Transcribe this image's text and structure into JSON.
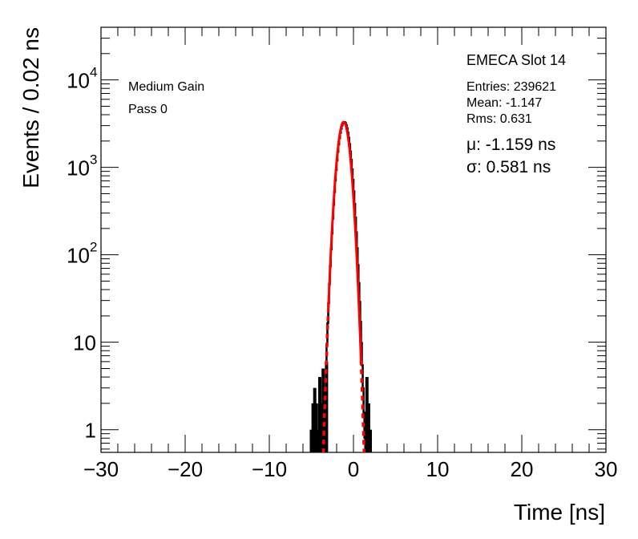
{
  "chart_data": {
    "type": "histogram",
    "xlabel": "Time [ns]",
    "ylabel": "Events / 0.02 ns",
    "xlim": [
      -30,
      30
    ],
    "ylim": [
      0.55,
      40000
    ],
    "yscale": "log",
    "grid": false,
    "x_ticks": [
      -30,
      -20,
      -10,
      0,
      10,
      20,
      30
    ],
    "x_tick_labels": [
      "−30",
      "−20",
      "−10",
      "0",
      "10",
      "20",
      "30"
    ],
    "y_ticks": [
      {
        "value": 1,
        "base": "1",
        "exp": ""
      },
      {
        "value": 10,
        "base": "10",
        "exp": ""
      },
      {
        "value": 100,
        "base": "10",
        "exp": "2"
      },
      {
        "value": 1000,
        "base": "10",
        "exp": "3"
      },
      {
        "value": 10000,
        "base": "10",
        "exp": "4"
      }
    ],
    "annotations": {
      "gain": "Medium Gain",
      "pass": "Pass 0",
      "slot": "EMECA Slot 14",
      "entries": "Entries: 239621",
      "mean": "Mean: -1.147",
      "rms": "Rms: 0.631",
      "mu": "μ: -1.159 ns",
      "sigma": "σ: 0.581 ns"
    },
    "histogram": {
      "mean": -1.147,
      "rms": 0.631,
      "peak": 3300,
      "color": "#000000",
      "tail_points": [
        {
          "x": -5.0,
          "y": 1
        },
        {
          "x": -4.8,
          "y": 2
        },
        {
          "x": -4.6,
          "y": 3
        },
        {
          "x": -4.4,
          "y": 2
        },
        {
          "x": -4.2,
          "y": 1
        },
        {
          "x": -4.0,
          "y": 4
        },
        {
          "x": -3.8,
          "y": 2
        },
        {
          "x": -3.6,
          "y": 5
        },
        {
          "x": -3.4,
          "y": 3
        },
        {
          "x": -3.2,
          "y": 6
        },
        {
          "x": 1.6,
          "y": 4
        },
        {
          "x": 1.8,
          "y": 2
        },
        {
          "x": 2.0,
          "y": 1
        }
      ]
    },
    "fit": {
      "type": "gaussian",
      "mu": -1.159,
      "sigma": 0.581,
      "amplitude": 3300,
      "color": "#ff0000",
      "solid_range": [
        -3.0,
        0.9
      ]
    }
  }
}
